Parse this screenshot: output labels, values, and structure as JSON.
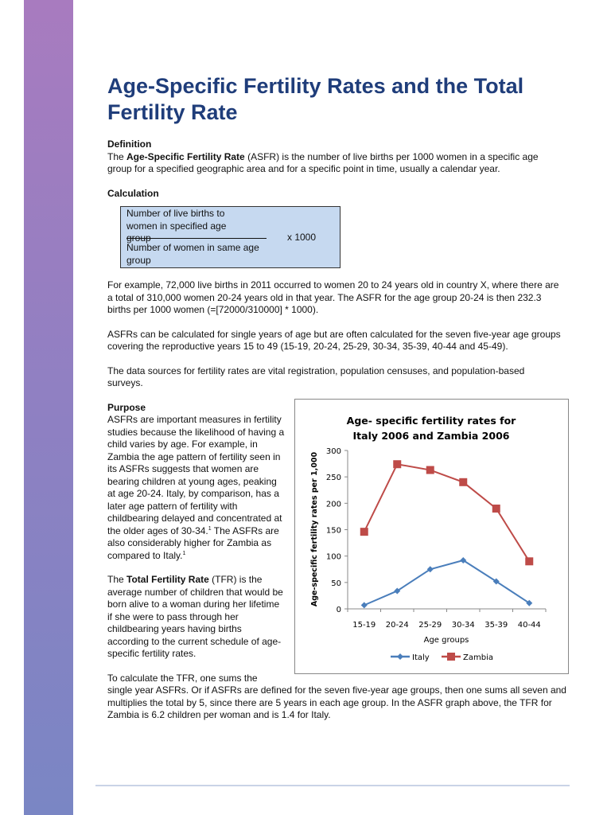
{
  "title": "Age-Specific Fertility Rates and the Total Fertility Rate",
  "definition": {
    "heading": "Definition",
    "pre": "The ",
    "bold": "Age-Specific Fertility Rate",
    "post": " (ASFR) is the number of live births per 1000 women in a specific age group for a specified geographic area and for a specific point in time, usually a calendar year."
  },
  "calculation": {
    "heading": "Calculation",
    "numerator": "Number of live births to women in specified age group",
    "denominator": "Number of women in same age group",
    "multiplier": "x 1000"
  },
  "paragraphs": [
    "For example, 72,000 live births in 2011 occurred to women 20 to 24 years old in country X, where there are a total of 310,000 women 20-24 years old in that year.  The ASFR for the age group 20-24 is then 232.3 births per 1000 women (=[72000/310000] * 1000).",
    "ASFRs can be calculated for single years of age but are often calculated for the seven five-year age groups covering the reproductive years 15 to 49 (15-19, 20-24, 25-29, 30-34, 35-39, 40-44 and 45-49).",
    "The data sources for fertility rates are vital registration, population censuses, and population-based surveys."
  ],
  "purpose": {
    "heading": "Purpose",
    "p1a": "ASFRs are important measures in fertility studies because the likelihood of having a child varies by age. For example, in Zambia the age pattern of fertility seen in its ASFRs suggests that women are bearing children at young ages, peaking at age 20-24. Italy, by comparison, has a later age pattern of fertility with childbearing delayed and concentrated at the older ages of 30-34.",
    "sup1": "1",
    "p1b": " The ASFRs are also considerably higher for Zambia as compared to Italy.",
    "sup2": "1",
    "p2pre": "The ",
    "p2bold": "Total Fertility Rate",
    "p2post": " (TFR) is the average number of children that would be born alive to a woman during her lifetime if she were to pass through her childbearing years having births according to the current schedule of age-specific fertility rates.",
    "p3": "To calculate the TFR, one sums the single year ASFRs.  Or if ASFRs are defined for the seven five-year age groups, then one sums all seven and multiplies the total by 5, since there are 5 years in each age group. In the ASFR graph above, the TFR for Zambia is 6.2 children per woman and is 1.4 for Italy."
  },
  "chart_data": {
    "type": "line",
    "title_line1": "Age- specific fertility rates for",
    "title_line2": "Italy 2006 and Zambia 2006",
    "xlabel": "Age groups",
    "ylabel": "Age-specific fertility rates per 1,000",
    "categories": [
      "15-19",
      "20-24",
      "25-29",
      "30-34",
      "35-39",
      "40-44"
    ],
    "ylim": [
      0,
      300
    ],
    "yticks": [
      "0",
      "50",
      "100",
      "150",
      "200",
      "250",
      "300"
    ],
    "grid": false,
    "legend": "bottom",
    "series": [
      {
        "name": "Italy",
        "values": [
          7,
          34,
          75,
          92,
          52,
          11
        ],
        "color": "#4a7ebb",
        "marker": "diamond"
      },
      {
        "name": "Zambia",
        "values": [
          146,
          274,
          263,
          240,
          190,
          90
        ],
        "color": "#be4b48",
        "marker": "square"
      }
    ]
  }
}
